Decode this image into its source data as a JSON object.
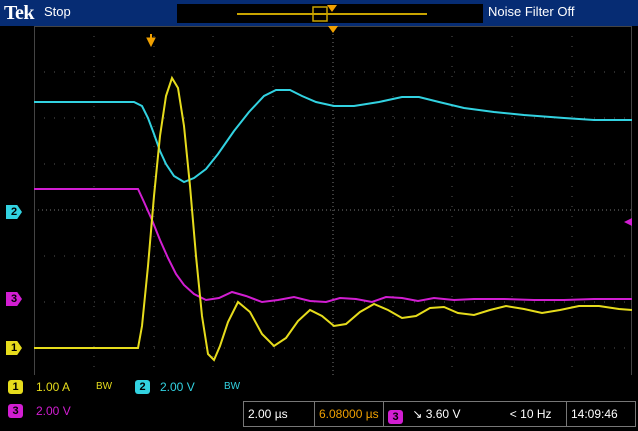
{
  "topbar": {
    "brand": "Tek",
    "acq_state": "Stop",
    "noise_filter": "Noise Filter Off"
  },
  "channels": {
    "ch1": {
      "number": "1",
      "scale": "1.00 A",
      "bw": "BW",
      "color": "#e6dc1c"
    },
    "ch2": {
      "number": "2",
      "scale": "2.00 V",
      "bw": "BW",
      "color": "#32d2e1"
    },
    "ch3": {
      "number": "3",
      "scale": "2.00 V",
      "color": "#d21ed2"
    }
  },
  "status": {
    "timebase": "2.00 µs",
    "position": "6.08000 µs",
    "trigger_channel": "3",
    "trigger_level": "3.60 V",
    "trigger_freq": "< 10 Hz",
    "time": "14:09:46"
  }
}
